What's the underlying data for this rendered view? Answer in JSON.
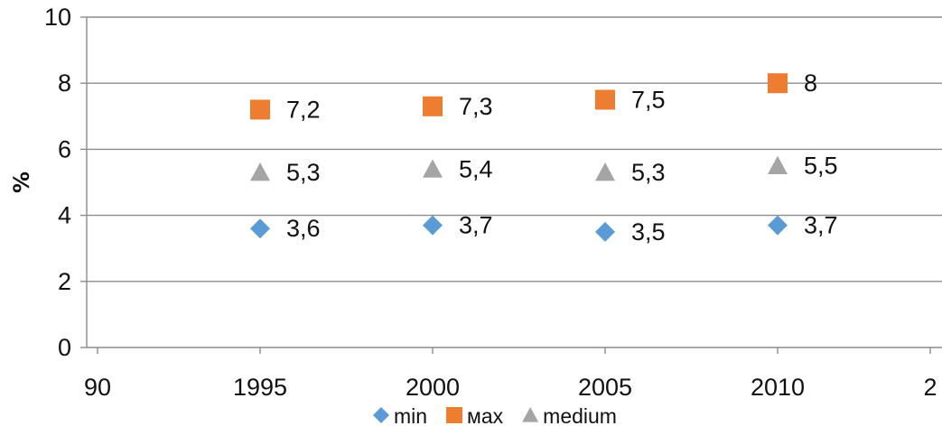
{
  "chart_data": {
    "type": "scatter",
    "title": "",
    "xlabel": "",
    "ylabel": "%",
    "x_tick_labels": [
      "90",
      "1995",
      "2000",
      "2005",
      "2010",
      "2"
    ],
    "ylim": [
      0,
      10
    ],
    "y_ticks": [
      0,
      2,
      4,
      6,
      8,
      10
    ],
    "grid": true,
    "legend_position": "bottom",
    "series": [
      {
        "name": "min",
        "marker": "diamond",
        "color": "#5b9bd5",
        "x": [
          1995,
          2000,
          2005,
          2010
        ],
        "y": [
          3.6,
          3.7,
          3.5,
          3.7
        ],
        "labels": [
          "3,6",
          "3,7",
          "3,5",
          "3,7"
        ]
      },
      {
        "name": "мах",
        "marker": "square",
        "color": "#ed7d31",
        "x": [
          1995,
          2000,
          2005,
          2010
        ],
        "y": [
          7.2,
          7.3,
          7.5,
          8
        ],
        "labels": [
          "7,2",
          "7,3",
          "7,5",
          "8"
        ]
      },
      {
        "name": "medium",
        "marker": "triangle",
        "color": "#a5a5a5",
        "x": [
          1995,
          2000,
          2005,
          2010
        ],
        "y": [
          5.3,
          5.4,
          5.3,
          5.5
        ],
        "labels": [
          "5,3",
          "5,4",
          "5,3",
          "5,5"
        ]
      }
    ]
  }
}
